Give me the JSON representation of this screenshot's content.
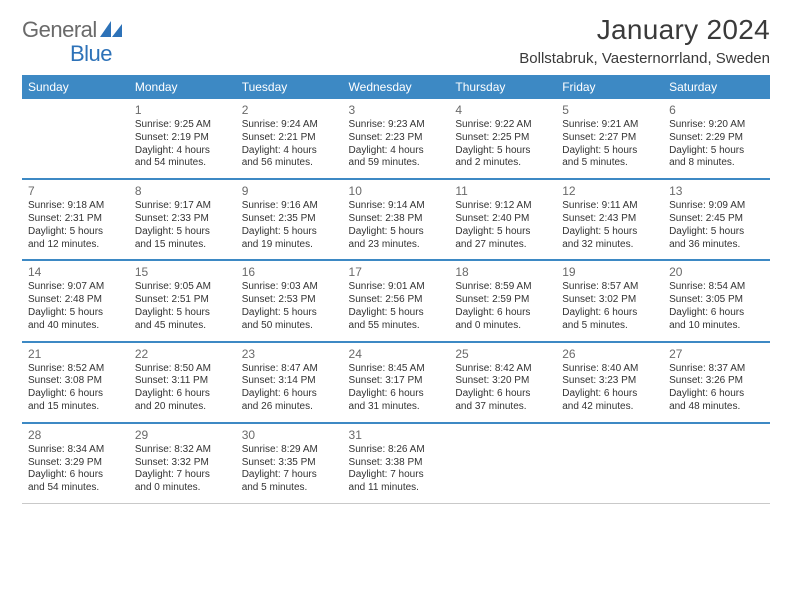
{
  "logo": {
    "text1": "General",
    "text2": "Blue"
  },
  "title": "January 2024",
  "location": "Bollstabruk, Vaesternorrland, Sweden",
  "colors": {
    "header_bg": "#3d89c4",
    "header_text": "#ffffff",
    "row_divider_top": "#3d89c4",
    "row_divider_bottom": "#c9c9c9",
    "logo_grey": "#6a6a6a",
    "logo_blue": "#2d72b8",
    "body_text": "#333333",
    "daynum": "#6a6a6a"
  },
  "weekdays": [
    "Sunday",
    "Monday",
    "Tuesday",
    "Wednesday",
    "Thursday",
    "Friday",
    "Saturday"
  ],
  "weeks": [
    [
      null,
      {
        "d": "1",
        "sunrise": "Sunrise: 9:25 AM",
        "sunset": "Sunset: 2:19 PM",
        "day1": "Daylight: 4 hours",
        "day2": "and 54 minutes."
      },
      {
        "d": "2",
        "sunrise": "Sunrise: 9:24 AM",
        "sunset": "Sunset: 2:21 PM",
        "day1": "Daylight: 4 hours",
        "day2": "and 56 minutes."
      },
      {
        "d": "3",
        "sunrise": "Sunrise: 9:23 AM",
        "sunset": "Sunset: 2:23 PM",
        "day1": "Daylight: 4 hours",
        "day2": "and 59 minutes."
      },
      {
        "d": "4",
        "sunrise": "Sunrise: 9:22 AM",
        "sunset": "Sunset: 2:25 PM",
        "day1": "Daylight: 5 hours",
        "day2": "and 2 minutes."
      },
      {
        "d": "5",
        "sunrise": "Sunrise: 9:21 AM",
        "sunset": "Sunset: 2:27 PM",
        "day1": "Daylight: 5 hours",
        "day2": "and 5 minutes."
      },
      {
        "d": "6",
        "sunrise": "Sunrise: 9:20 AM",
        "sunset": "Sunset: 2:29 PM",
        "day1": "Daylight: 5 hours",
        "day2": "and 8 minutes."
      }
    ],
    [
      {
        "d": "7",
        "sunrise": "Sunrise: 9:18 AM",
        "sunset": "Sunset: 2:31 PM",
        "day1": "Daylight: 5 hours",
        "day2": "and 12 minutes."
      },
      {
        "d": "8",
        "sunrise": "Sunrise: 9:17 AM",
        "sunset": "Sunset: 2:33 PM",
        "day1": "Daylight: 5 hours",
        "day2": "and 15 minutes."
      },
      {
        "d": "9",
        "sunrise": "Sunrise: 9:16 AM",
        "sunset": "Sunset: 2:35 PM",
        "day1": "Daylight: 5 hours",
        "day2": "and 19 minutes."
      },
      {
        "d": "10",
        "sunrise": "Sunrise: 9:14 AM",
        "sunset": "Sunset: 2:38 PM",
        "day1": "Daylight: 5 hours",
        "day2": "and 23 minutes."
      },
      {
        "d": "11",
        "sunrise": "Sunrise: 9:12 AM",
        "sunset": "Sunset: 2:40 PM",
        "day1": "Daylight: 5 hours",
        "day2": "and 27 minutes."
      },
      {
        "d": "12",
        "sunrise": "Sunrise: 9:11 AM",
        "sunset": "Sunset: 2:43 PM",
        "day1": "Daylight: 5 hours",
        "day2": "and 32 minutes."
      },
      {
        "d": "13",
        "sunrise": "Sunrise: 9:09 AM",
        "sunset": "Sunset: 2:45 PM",
        "day1": "Daylight: 5 hours",
        "day2": "and 36 minutes."
      }
    ],
    [
      {
        "d": "14",
        "sunrise": "Sunrise: 9:07 AM",
        "sunset": "Sunset: 2:48 PM",
        "day1": "Daylight: 5 hours",
        "day2": "and 40 minutes."
      },
      {
        "d": "15",
        "sunrise": "Sunrise: 9:05 AM",
        "sunset": "Sunset: 2:51 PM",
        "day1": "Daylight: 5 hours",
        "day2": "and 45 minutes."
      },
      {
        "d": "16",
        "sunrise": "Sunrise: 9:03 AM",
        "sunset": "Sunset: 2:53 PM",
        "day1": "Daylight: 5 hours",
        "day2": "and 50 minutes."
      },
      {
        "d": "17",
        "sunrise": "Sunrise: 9:01 AM",
        "sunset": "Sunset: 2:56 PM",
        "day1": "Daylight: 5 hours",
        "day2": "and 55 minutes."
      },
      {
        "d": "18",
        "sunrise": "Sunrise: 8:59 AM",
        "sunset": "Sunset: 2:59 PM",
        "day1": "Daylight: 6 hours",
        "day2": "and 0 minutes."
      },
      {
        "d": "19",
        "sunrise": "Sunrise: 8:57 AM",
        "sunset": "Sunset: 3:02 PM",
        "day1": "Daylight: 6 hours",
        "day2": "and 5 minutes."
      },
      {
        "d": "20",
        "sunrise": "Sunrise: 8:54 AM",
        "sunset": "Sunset: 3:05 PM",
        "day1": "Daylight: 6 hours",
        "day2": "and 10 minutes."
      }
    ],
    [
      {
        "d": "21",
        "sunrise": "Sunrise: 8:52 AM",
        "sunset": "Sunset: 3:08 PM",
        "day1": "Daylight: 6 hours",
        "day2": "and 15 minutes."
      },
      {
        "d": "22",
        "sunrise": "Sunrise: 8:50 AM",
        "sunset": "Sunset: 3:11 PM",
        "day1": "Daylight: 6 hours",
        "day2": "and 20 minutes."
      },
      {
        "d": "23",
        "sunrise": "Sunrise: 8:47 AM",
        "sunset": "Sunset: 3:14 PM",
        "day1": "Daylight: 6 hours",
        "day2": "and 26 minutes."
      },
      {
        "d": "24",
        "sunrise": "Sunrise: 8:45 AM",
        "sunset": "Sunset: 3:17 PM",
        "day1": "Daylight: 6 hours",
        "day2": "and 31 minutes."
      },
      {
        "d": "25",
        "sunrise": "Sunrise: 8:42 AM",
        "sunset": "Sunset: 3:20 PM",
        "day1": "Daylight: 6 hours",
        "day2": "and 37 minutes."
      },
      {
        "d": "26",
        "sunrise": "Sunrise: 8:40 AM",
        "sunset": "Sunset: 3:23 PM",
        "day1": "Daylight: 6 hours",
        "day2": "and 42 minutes."
      },
      {
        "d": "27",
        "sunrise": "Sunrise: 8:37 AM",
        "sunset": "Sunset: 3:26 PM",
        "day1": "Daylight: 6 hours",
        "day2": "and 48 minutes."
      }
    ],
    [
      {
        "d": "28",
        "sunrise": "Sunrise: 8:34 AM",
        "sunset": "Sunset: 3:29 PM",
        "day1": "Daylight: 6 hours",
        "day2": "and 54 minutes."
      },
      {
        "d": "29",
        "sunrise": "Sunrise: 8:32 AM",
        "sunset": "Sunset: 3:32 PM",
        "day1": "Daylight: 7 hours",
        "day2": "and 0 minutes."
      },
      {
        "d": "30",
        "sunrise": "Sunrise: 8:29 AM",
        "sunset": "Sunset: 3:35 PM",
        "day1": "Daylight: 7 hours",
        "day2": "and 5 minutes."
      },
      {
        "d": "31",
        "sunrise": "Sunrise: 8:26 AM",
        "sunset": "Sunset: 3:38 PM",
        "day1": "Daylight: 7 hours",
        "day2": "and 11 minutes."
      },
      null,
      null,
      null
    ]
  ]
}
